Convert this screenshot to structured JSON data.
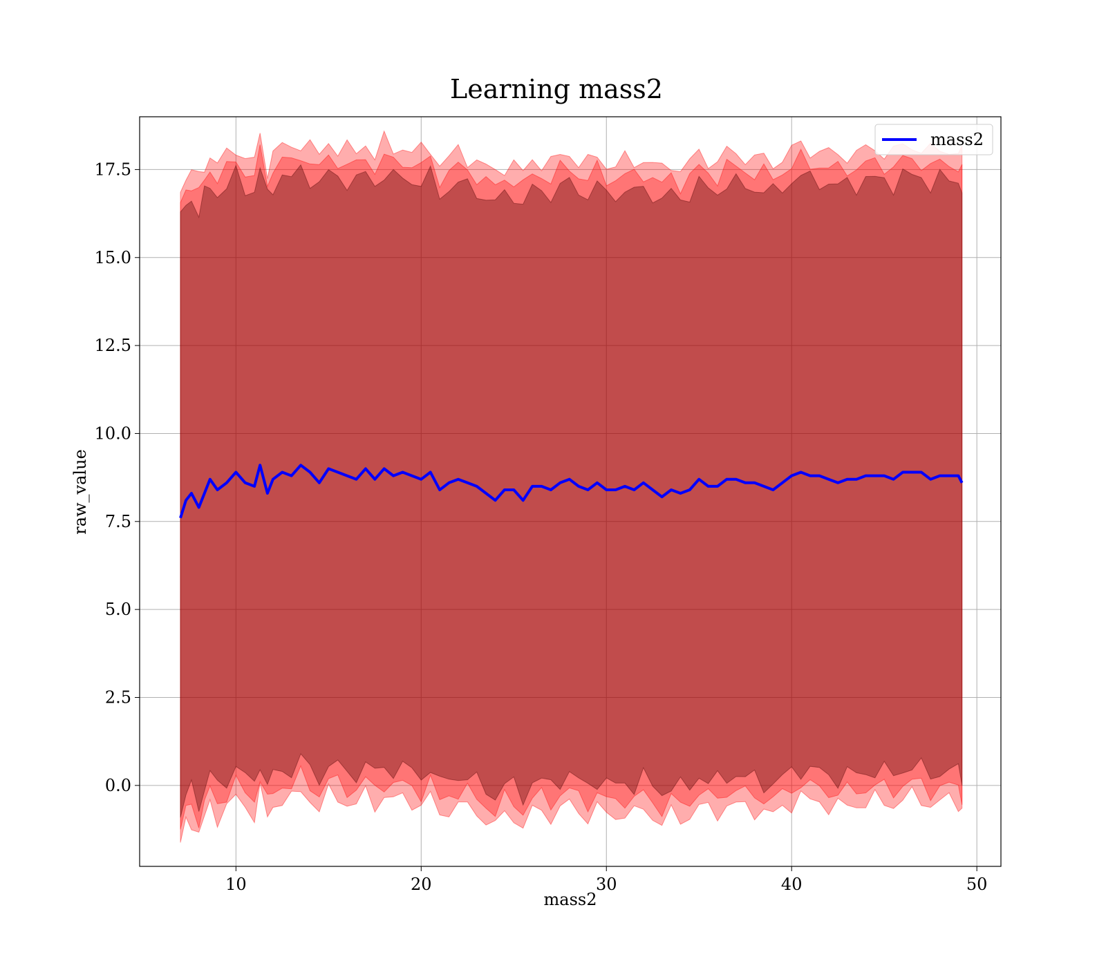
{
  "chart_data": {
    "type": "area",
    "title": "Learning mass2",
    "xlabel": "mass2",
    "ylabel": "raw_value",
    "xlim": [
      4.8,
      51.3
    ],
    "ylim": [
      -2.3,
      19.0
    ],
    "x_ticks": [
      10,
      20,
      30,
      40,
      50
    ],
    "x_tick_labels": [
      "10",
      "20",
      "30",
      "40",
      "50"
    ],
    "y_ticks": [
      0.0,
      2.5,
      5.0,
      7.5,
      10.0,
      12.5,
      15.0,
      17.5
    ],
    "y_tick_labels": [
      "0.0",
      "2.5",
      "5.0",
      "7.5",
      "10.0",
      "12.5",
      "15.0",
      "17.5"
    ],
    "grid": true,
    "legend_position": "top-right",
    "colors": {
      "mean_line": "#0000ff",
      "band_outer": "#ff0000",
      "band_inner": "#4d0000",
      "band_fill_overlap": "#a07078"
    },
    "series": [
      {
        "name": "mass2",
        "x": [
          7.0,
          7.3,
          7.6,
          8.0,
          8.3,
          8.6,
          9.0,
          9.5,
          10.0,
          10.5,
          11.0,
          11.3,
          11.7,
          12.0,
          12.5,
          13.0,
          13.5,
          14.0,
          14.5,
          15.0,
          15.5,
          16.0,
          16.5,
          17.0,
          17.5,
          18.0,
          18.5,
          19.0,
          19.5,
          20.0,
          20.5,
          21.0,
          21.5,
          22.0,
          22.5,
          23.0,
          23.5,
          24.0,
          24.5,
          25.0,
          25.5,
          26.0,
          26.5,
          27.0,
          27.5,
          28.0,
          28.5,
          29.0,
          29.5,
          30.0,
          30.5,
          31.0,
          31.5,
          32.0,
          32.5,
          33.0,
          33.5,
          34.0,
          34.5,
          35.0,
          35.5,
          36.0,
          36.5,
          37.0,
          37.5,
          38.0,
          38.5,
          39.0,
          39.5,
          40.0,
          40.5,
          41.0,
          41.5,
          42.0,
          42.5,
          43.0,
          43.5,
          44.0,
          44.5,
          45.0,
          45.5,
          46.0,
          46.5,
          47.0,
          47.5,
          48.0,
          48.5,
          49.0,
          49.2
        ],
        "mean": [
          7.6,
          8.1,
          8.3,
          7.9,
          8.3,
          8.7,
          8.4,
          8.6,
          8.9,
          8.6,
          8.5,
          9.1,
          8.3,
          8.7,
          8.9,
          8.8,
          9.1,
          8.9,
          8.6,
          9.0,
          8.9,
          8.8,
          8.7,
          9.0,
          8.7,
          9.0,
          8.8,
          8.9,
          8.8,
          8.7,
          8.9,
          8.4,
          8.6,
          8.7,
          8.6,
          8.5,
          8.3,
          8.1,
          8.4,
          8.4,
          8.1,
          8.5,
          8.5,
          8.4,
          8.6,
          8.7,
          8.5,
          8.4,
          8.6,
          8.4,
          8.4,
          8.5,
          8.4,
          8.6,
          8.4,
          8.2,
          8.4,
          8.3,
          8.4,
          8.7,
          8.5,
          8.5,
          8.7,
          8.7,
          8.6,
          8.6,
          8.5,
          8.4,
          8.6,
          8.8,
          8.9,
          8.8,
          8.8,
          8.7,
          8.6,
          8.7,
          8.7,
          8.8,
          8.8,
          8.8,
          8.7,
          8.9,
          8.9,
          8.9,
          8.7,
          8.8,
          8.8,
          8.8,
          8.6
        ]
      }
    ]
  },
  "legend": {
    "label": "mass2"
  }
}
